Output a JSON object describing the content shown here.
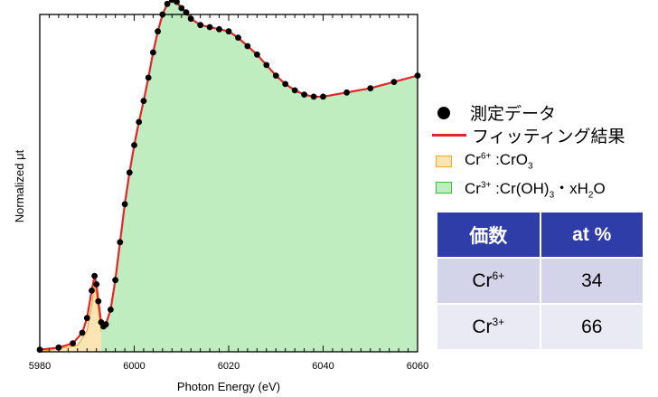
{
  "chart_data": {
    "type": "line",
    "xlabel": "Photon Energy (eV)",
    "ylabel": "Normalized μt",
    "xlim": [
      5980,
      6060
    ],
    "ylim": [
      0,
      1.6
    ],
    "x_ticks": [
      "5980",
      "6000",
      "6020",
      "6040",
      "6060"
    ],
    "series": [
      {
        "name": "測定データ",
        "style": "dots",
        "color": "#000000",
        "x": [
          5980,
          5984,
          5987,
          5989,
          5990,
          5991,
          5991.6,
          5992,
          5992.4,
          5993,
          5993.5,
          5994,
          5995,
          5996,
          5997,
          5998,
          5999,
          6000,
          6001,
          6002,
          6003,
          6004,
          6005,
          6006,
          6007,
          6008,
          6009,
          6010,
          6011,
          6012,
          6014,
          6016,
          6018,
          6020,
          6022,
          6024,
          6026,
          6028,
          6030,
          6032,
          6034,
          6036,
          6038,
          6040,
          6045,
          6050,
          6055,
          6060
        ],
        "y": [
          0.01,
          0.02,
          0.04,
          0.09,
          0.16,
          0.29,
          0.36,
          0.32,
          0.24,
          0.14,
          0.12,
          0.13,
          0.2,
          0.34,
          0.52,
          0.7,
          0.85,
          0.98,
          1.09,
          1.19,
          1.3,
          1.42,
          1.52,
          1.6,
          1.65,
          1.67,
          1.66,
          1.63,
          1.61,
          1.58,
          1.55,
          1.54,
          1.53,
          1.52,
          1.49,
          1.45,
          1.41,
          1.36,
          1.31,
          1.27,
          1.24,
          1.22,
          1.21,
          1.21,
          1.23,
          1.25,
          1.28,
          1.31
        ]
      },
      {
        "name": "フィッティング結果",
        "style": "line",
        "color": "#e3262a",
        "x": [
          5980,
          5984,
          5987,
          5989,
          5990,
          5991,
          5991.6,
          5992,
          5992.4,
          5993,
          5993.5,
          5994,
          5995,
          5996,
          5997,
          5998,
          5999,
          6000,
          6001,
          6002,
          6003,
          6004,
          6005,
          6006,
          6007,
          6008,
          6009,
          6010,
          6011,
          6012,
          6014,
          6016,
          6018,
          6020,
          6022,
          6024,
          6026,
          6028,
          6030,
          6032,
          6034,
          6036,
          6038,
          6040,
          6045,
          6050,
          6055,
          6060
        ],
        "y": [
          0.01,
          0.02,
          0.04,
          0.09,
          0.16,
          0.29,
          0.36,
          0.32,
          0.24,
          0.14,
          0.12,
          0.13,
          0.2,
          0.34,
          0.52,
          0.7,
          0.85,
          0.98,
          1.09,
          1.19,
          1.3,
          1.42,
          1.52,
          1.6,
          1.65,
          1.67,
          1.66,
          1.63,
          1.61,
          1.58,
          1.55,
          1.54,
          1.53,
          1.52,
          1.49,
          1.45,
          1.41,
          1.36,
          1.31,
          1.27,
          1.24,
          1.22,
          1.21,
          1.21,
          1.23,
          1.25,
          1.28,
          1.31
        ]
      },
      {
        "name": "Cr6+ :CrO3",
        "style": "area",
        "color": "#f5a623",
        "fill": "#fde4b4",
        "x": [
          5980,
          5988,
          5990,
          5991,
          5991.6,
          5992,
          5993,
          5994,
          5996,
          5998,
          6000,
          6002,
          6004,
          6006,
          6010,
          6015,
          6020,
          6030,
          6040,
          6050,
          6060
        ],
        "y": [
          0.0,
          0.03,
          0.1,
          0.22,
          0.32,
          0.27,
          0.1,
          0.02,
          0.04,
          0.07,
          0.13,
          0.2,
          0.29,
          0.36,
          0.4,
          0.43,
          0.45,
          0.47,
          0.45,
          0.41,
          0.39
        ]
      },
      {
        "name": "Cr3+ :Cr(OH)3・xH2O",
        "style": "area",
        "color": "#33c23a",
        "fill": "#bfedbf",
        "x": [
          5993,
          5994,
          5995,
          5996,
          5997,
          5998,
          5999,
          6000,
          6001,
          6002,
          6003,
          6004,
          6005,
          6006,
          6007,
          6008,
          6010,
          6012,
          6014,
          6016,
          6018,
          6020,
          6024,
          6028,
          6032,
          6036,
          6038,
          6040,
          6045,
          6050,
          6055,
          6060
        ],
        "y": [
          0.12,
          0.13,
          0.2,
          0.34,
          0.52,
          0.7,
          0.85,
          0.98,
          1.09,
          1.19,
          1.3,
          1.42,
          1.52,
          1.6,
          1.65,
          1.67,
          1.63,
          1.58,
          1.55,
          1.54,
          1.53,
          1.52,
          1.45,
          1.36,
          1.27,
          1.22,
          1.21,
          1.21,
          1.23,
          1.25,
          1.28,
          1.31
        ]
      }
    ]
  },
  "legend": {
    "measured": "測定データ",
    "fit": "フィッティング結果",
    "cr6": "Cr6+ :CrO3",
    "cr3": "Cr3+ :Cr(OH)3・xH2O"
  },
  "table": {
    "headers": [
      "価数",
      "at %"
    ],
    "rows": [
      {
        "label": "Cr6+",
        "value": "34"
      },
      {
        "label": "Cr3+",
        "value": "66"
      }
    ]
  }
}
